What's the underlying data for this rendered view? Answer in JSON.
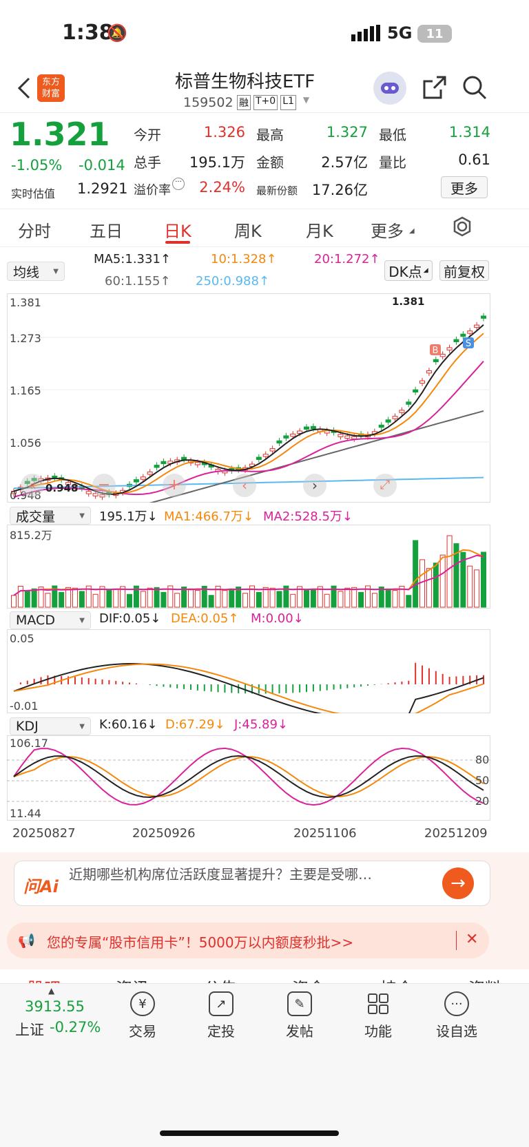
{
  "status_bar": {
    "time": "1:38",
    "network": "5G",
    "battery": "11"
  },
  "header": {
    "title": "标普生物科技ETF",
    "code": "159502",
    "badges": [
      "融",
      "T+0",
      "L1"
    ],
    "logo": "东方\n财富"
  },
  "quote": {
    "price": "1.321",
    "change_pct": "-1.05%",
    "change": "-0.014",
    "estimate_label": "实时估值",
    "estimate": "1.2921",
    "open_label": "今开",
    "open": "1.326",
    "high_label": "最高",
    "high": "1.327",
    "low_label": "最低",
    "low": "1.314",
    "volume_label": "总手",
    "volume": "195.1万",
    "amount_label": "金额",
    "amount": "2.57亿",
    "ratio_label": "量比",
    "ratio": "0.61",
    "premium_label": "溢价率",
    "premium": "2.24%",
    "shares_label": "最新份额",
    "shares": "17.26亿",
    "more_label": "更多"
  },
  "tabs": [
    "分时",
    "五日",
    "日K",
    "周K",
    "月K",
    "更多"
  ],
  "active_tab": "日K",
  "kline": {
    "selector": "均线",
    "ma5": "MA5:1.331↑",
    "ma10": "10:1.328↑",
    "ma20": "20:1.272↑",
    "ma60": "60:1.155↑",
    "ma250": "250:0.988↑",
    "dk_label": "DK点",
    "adjust_label": "前复权",
    "y_top": "1.381",
    "y2": "1.273",
    "y3": "1.165",
    "y4": "1.056",
    "y_bottom": "0.948",
    "high_mark": "1.381",
    "low_mark": "0.948",
    "marker_b": "B",
    "marker_s": "S"
  },
  "volume": {
    "selector": "成交量",
    "value": "195.1万↓",
    "ma1": "MA1:466.7万↓",
    "ma2": "MA2:528.5万↓",
    "y_top": "815.2万"
  },
  "macd": {
    "selector": "MACD",
    "dif": "DIF:0.05↓",
    "dea": "DEA:0.05↑",
    "m": "M:0.00↓",
    "y_top": "0.05",
    "y_bottom": "-0.01"
  },
  "kdj": {
    "selector": "KDJ",
    "k": "K:60.16↓",
    "d": "D:67.29↓",
    "j": "J:45.89↓",
    "y_top": "106.17",
    "y_bottom": "11.44",
    "lvl80": "80",
    "lvl50": "50",
    "lvl20": "20"
  },
  "dates": [
    "20250827",
    "20250926",
    "20251106",
    "20251209"
  ],
  "ai": {
    "label": "问Ai",
    "question": "近期哪些机构席位活跃度显著提升？主要是受哪…"
  },
  "banner": {
    "text": "您的专属“股市信用卡”！5000万以内额度秒批>>"
  },
  "bottom_tabs": [
    "股吧",
    "资讯",
    "公告",
    "资金",
    "持仓",
    "资料"
  ],
  "bottom_nav": {
    "index_value": "3913.55",
    "index_name": "上证",
    "index_change": "-0.27%",
    "items": [
      "交易",
      "定投",
      "发帖",
      "功能",
      "设自选"
    ]
  },
  "colors": {
    "up": "#e0302b",
    "down": "#14a03c",
    "ma5": "#222222",
    "ma10": "#f5880b",
    "ma20": "#d9219a",
    "ma60": "#666666",
    "ma250": "#5ab8f0"
  }
}
